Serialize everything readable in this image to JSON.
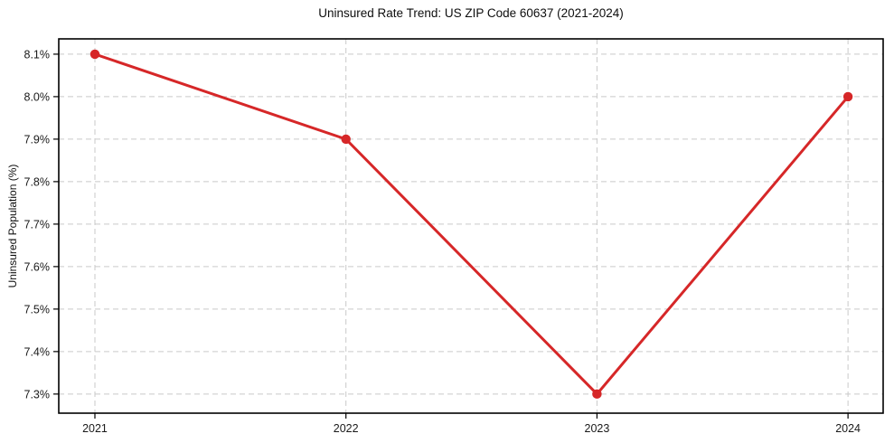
{
  "chart_data": {
    "type": "line",
    "title": "Uninsured Rate Trend: US ZIP Code 60637 (2021-2024)",
    "xlabel": "",
    "ylabel": "Uninsured Population (%)",
    "x": [
      2021,
      2022,
      2023,
      2024
    ],
    "xtick_labels": [
      "2021",
      "2022",
      "2023",
      "2024"
    ],
    "series": [
      {
        "name": "Uninsured Population (%)",
        "values": [
          8.1,
          7.9,
          7.3,
          8.0
        ]
      }
    ],
    "point_labels": [
      "8.1%",
      "7.9%",
      "7.3%",
      "8.0%"
    ],
    "yticks": [
      7.3,
      7.4,
      7.5,
      7.6,
      7.7,
      7.8,
      7.9,
      8.0,
      8.1
    ],
    "ytick_labels": [
      "7.3%",
      "7.4%",
      "7.5%",
      "7.6%",
      "7.7%",
      "7.8%",
      "7.9%",
      "8.0%",
      "8.1%"
    ],
    "xlim": [
      2020.856,
      2024.14
    ],
    "ylim": [
      7.255,
      8.136
    ],
    "grid": "dashed",
    "legend": "none",
    "line_color": "#d62728",
    "marker": "circle",
    "grid_color": "#c9c9c9",
    "spine_color": "#000000",
    "tick_text_color": "#1a1a1a"
  }
}
